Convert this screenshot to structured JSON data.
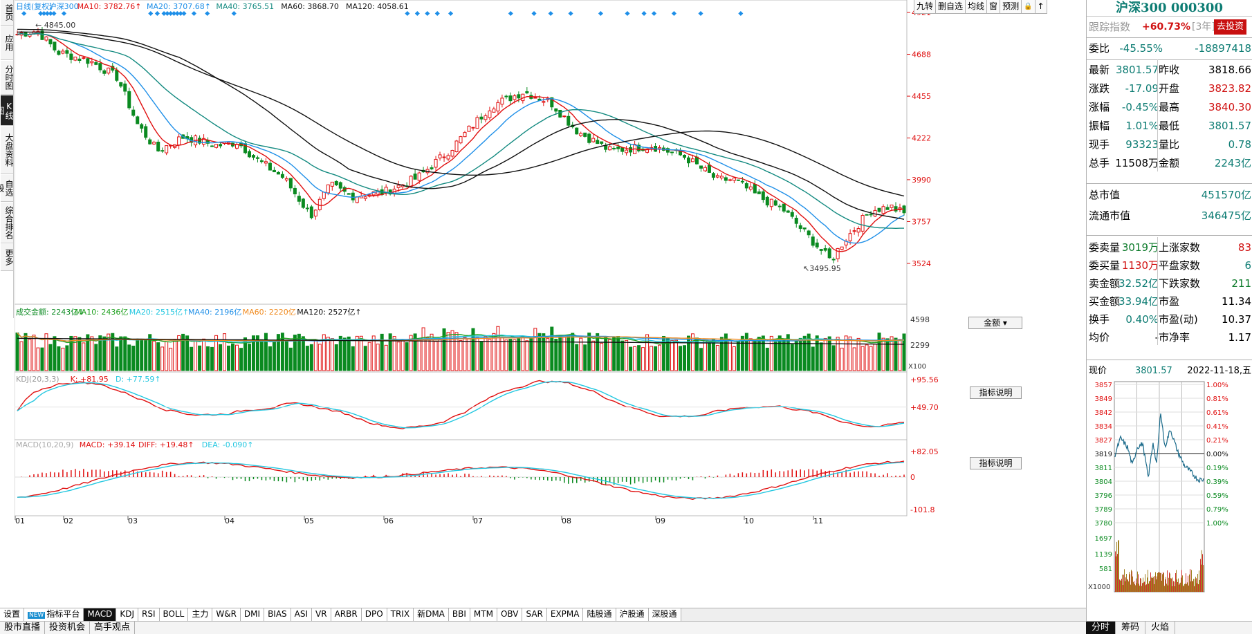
{
  "left_nav": [
    "首页",
    "应用",
    "分时图",
    "K线图",
    "大盘资料",
    "自选股",
    "综合排名",
    "更多"
  ],
  "left_nav_active": 3,
  "main_header": {
    "label": "日线(复权)",
    "name": "沪深300",
    "ma10": "MA10: 3782.76↑",
    "ma20": "MA20: 3707.68↑",
    "ma40": "MA40: 3765.51",
    "ma60": "MA60: 3868.70",
    "ma120": "MA120: 4058.61"
  },
  "toolbar": [
    "九转",
    "删自选",
    "均线",
    "窗",
    "预测"
  ],
  "price_axis": [
    "4921",
    "4688",
    "4455",
    "4222",
    "3990",
    "3757",
    "3524"
  ],
  "high_label": "4845.00",
  "low_label": "3495.95",
  "volume_header": {
    "label": "成交金额: 2243亿↓",
    "ma10": "MA10: 2436亿",
    "ma20": "MA20: 2515亿↑",
    "ma40": "MA40: 2196亿",
    "ma60": "MA60: 2220亿",
    "ma120": "MA120: 2527亿↑"
  },
  "volume_button": "金额",
  "volume_axis": [
    "4598",
    "2299"
  ],
  "volume_unit": "X100",
  "kdj_header": {
    "label": "KDJ(20,3,3)",
    "k": "K: +81.95",
    "d": "D: +77.59↑"
  },
  "kdj_axis": [
    "+95.56",
    "+49.70"
  ],
  "indicator_btn": "指标说明",
  "macd_header": {
    "label": "MACD(10,20,9)",
    "macd": "MACD: +39.14",
    "diff": "DIFF: +19.48↑",
    "dea": "DEA: -0.090↑"
  },
  "macd_axis": [
    "+82.05",
    "0",
    "-101.8"
  ],
  "months": [
    "01",
    "02",
    "03",
    "04",
    "05",
    "06",
    "07",
    "08",
    "09",
    "10",
    "11"
  ],
  "indicator_tabs": [
    "设置",
    "指标平台",
    "MACD",
    "KDJ",
    "RSI",
    "BOLL",
    "主力",
    "W&R",
    "DMI",
    "BIAS",
    "ASI",
    "VR",
    "ARBR",
    "DPO",
    "TRIX",
    "新DMA",
    "BBI",
    "MTM",
    "OBV",
    "SAR",
    "EXPMA",
    "陆股通",
    "沪股通",
    "深股通"
  ],
  "indicator_new_tag": "NEW",
  "indicator_active": "MACD",
  "bottom_tabs": [
    "股市直播",
    "投资机会",
    "高手观点"
  ],
  "right_panel": {
    "title": "沪深300 000300",
    "follow_label": "跟踪指数",
    "follow_value": "+60.73%",
    "follow_period": "[3年]",
    "invest_btn": "去投资",
    "weibi_label": "委比",
    "weibi_pct": "-45.55%",
    "weibi_val": "-18897418",
    "quote_rows": [
      {
        "l1": "最新",
        "v1": "3801.57",
        "c1": "teal",
        "l2": "昨收",
        "v2": "3818.66",
        "c2": "black"
      },
      {
        "l1": "涨跌",
        "v1": "-17.09",
        "c1": "teal",
        "l2": "开盘",
        "v2": "3823.82",
        "c2": "red"
      },
      {
        "l1": "涨幅",
        "v1": "-0.45%",
        "c1": "teal",
        "l2": "最高",
        "v2": "3840.30",
        "c2": "red"
      },
      {
        "l1": "振幅",
        "v1": "1.01%",
        "c1": "teal",
        "l2": "最低",
        "v2": "3801.57",
        "c2": "teal"
      },
      {
        "l1": "现手",
        "v1": "93323",
        "c1": "teal",
        "l2": "量比",
        "v2": "0.78",
        "c2": "teal"
      },
      {
        "l1": "总手",
        "v1": "11508万",
        "c1": "black",
        "l2": "金额",
        "v2": "2243亿",
        "c2": "teal"
      }
    ],
    "mktcap_label": "总市值",
    "mktcap_value": "451570亿",
    "float_label": "流通市值",
    "float_value": "346475亿",
    "stat_rows": [
      {
        "l1": "委卖量",
        "v1": "3019万",
        "c1": "green",
        "l2": "上涨家数",
        "v2": "83",
        "c2": "red"
      },
      {
        "l1": "委买量",
        "v1": "1130万",
        "c1": "red",
        "l2": "平盘家数",
        "v2": "6",
        "c2": "teal"
      },
      {
        "l1": "卖金额",
        "v1": "32.52亿",
        "c1": "teal",
        "l2": "下跌家数",
        "v2": "211",
        "c2": "green"
      },
      {
        "l1": "买金额",
        "v1": "33.94亿",
        "c1": "teal",
        "l2": "市盈",
        "v2": "11.34",
        "c2": "black"
      },
      {
        "l1": "换手",
        "v1": "0.40%",
        "c1": "teal",
        "l2": "市盈(动)",
        "v2": "10.37",
        "c2": "black"
      },
      {
        "l1": "均价",
        "v1": "-",
        "c1": "black",
        "l2": "市净率",
        "v2": "1.17",
        "c2": "black"
      }
    ],
    "now_label": "现价",
    "now_value": "3801.57",
    "now_date": "2022-11-18,五",
    "mini_left_axis": [
      "3857",
      "3849",
      "3842",
      "3834",
      "3827",
      "3819",
      "3811",
      "3804",
      "3796",
      "3789",
      "3780"
    ],
    "mini_right_axis": [
      "1.00%",
      "0.81%",
      "0.61%",
      "0.41%",
      "0.21%",
      "0.00%",
      "0.19%",
      "0.39%",
      "0.59%",
      "0.79%",
      "1.00%"
    ],
    "mini_vol_axis": [
      "1697",
      "1139",
      "581"
    ],
    "mini_vol_unit": "X1000",
    "bottom_tabs": [
      "分时",
      "筹码",
      "火焰"
    ],
    "bottom_active": "分时"
  },
  "colors": {
    "up": "#e01010",
    "down": "#0a8a20",
    "ma10": "#e01010",
    "ma20": "#1e8fe8",
    "ma40": "#138a80",
    "ma60": "#111111",
    "ma120": "#111111",
    "kline_axis": "#e01010",
    "diamond": "#1e8fe8",
    "kdj_k": "#e01010",
    "kdj_d": "#22c7e0",
    "vol_ma10": "#1ea01e",
    "vol_ma20": "#22c7e0",
    "vol_ma40": "#1e8fe8",
    "vol_ma60": "#f08a1e",
    "vol_ma120": "#111111"
  }
}
